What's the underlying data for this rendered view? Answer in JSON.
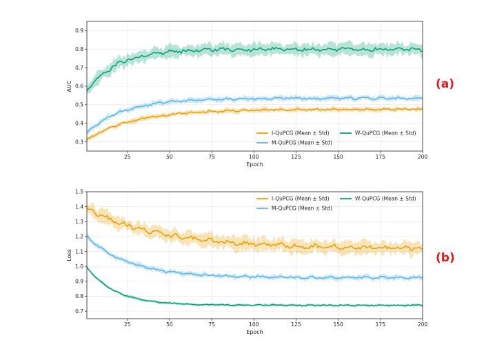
{
  "chart_data": [
    {
      "type": "line",
      "panel_label": "(a)",
      "title": "",
      "xlabel": "Epoch",
      "ylabel": "AUC",
      "xlim": [
        1,
        200
      ],
      "ylim": [
        0.25,
        0.95
      ],
      "xticks": [
        25,
        50,
        75,
        100,
        125,
        150,
        175,
        200
      ],
      "yticks": [
        0.3,
        0.4,
        0.5,
        0.6,
        0.7,
        0.8,
        0.9
      ],
      "grid": true,
      "legend_position": "bottom-right",
      "series": [
        {
          "name": "I-QuPCG (Mean ± Std)",
          "color": "#E69F00",
          "start": 0.31,
          "end": 0.475,
          "tau": 28,
          "std": 0.012,
          "noise": 0.004
        },
        {
          "name": "M-QuPCG (Mean ± Std)",
          "color": "#56B4E9",
          "start": 0.35,
          "end": 0.535,
          "tau": 22,
          "std": 0.013,
          "noise": 0.005
        },
        {
          "name": "W-QuPCG (Mean ± Std)",
          "color": "#009E73",
          "start": 0.575,
          "end": 0.8,
          "tau": 18,
          "std": 0.03,
          "noise": 0.008
        }
      ]
    },
    {
      "type": "line",
      "panel_label": "(b)",
      "title": "",
      "xlabel": "Epoch",
      "ylabel": "Loss",
      "xlim": [
        1,
        200
      ],
      "ylim": [
        0.65,
        1.5
      ],
      "xticks": [
        25,
        50,
        75,
        100,
        125,
        150,
        175,
        200
      ],
      "yticks": [
        0.7,
        0.8,
        0.9,
        1.0,
        1.1,
        1.2,
        1.3,
        1.4,
        1.5
      ],
      "grid": true,
      "legend_position": "top-right",
      "series": [
        {
          "name": "I-QuPCG (Mean ± Std)",
          "color": "#E69F00",
          "start": 1.385,
          "end": 1.12,
          "tau": 45,
          "std": 0.04,
          "noise": 0.012
        },
        {
          "name": "M-QuPCG (Mean ± Std)",
          "color": "#56B4E9",
          "start": 1.2,
          "end": 0.925,
          "tau": 25,
          "std": 0.015,
          "noise": 0.006
        },
        {
          "name": "W-QuPCG (Mean ± Std)",
          "color": "#009E73",
          "start": 0.995,
          "end": 0.74,
          "tau": 17,
          "std": 0.008,
          "noise": 0.003
        }
      ]
    }
  ]
}
